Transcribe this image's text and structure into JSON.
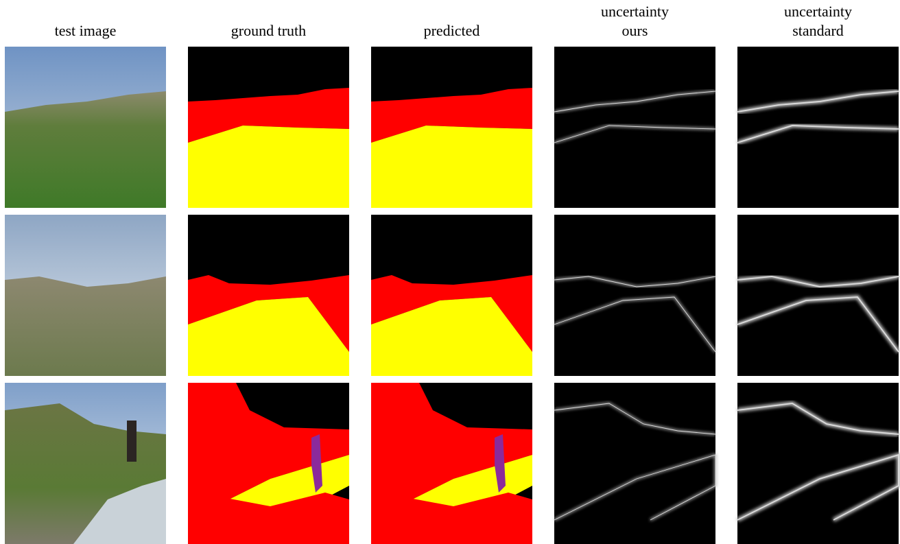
{
  "figure": {
    "columns": [
      [
        "test image"
      ],
      [
        "ground truth"
      ],
      [
        "predicted"
      ],
      [
        "uncertainty",
        "ours"
      ],
      [
        "uncertainty",
        "standard"
      ]
    ]
  }
}
